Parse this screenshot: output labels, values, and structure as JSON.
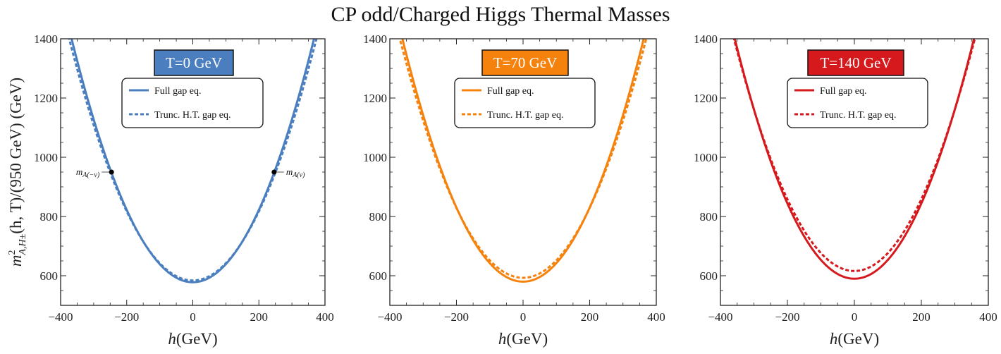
{
  "chart_data": {
    "title": "CP odd/Charged Higgs Thermal Masses",
    "ylabel": "m²_{A,H±}(h,T)/(950 GeV) (GeV)",
    "ylabel_parts": {
      "m": "m",
      "sup": "2",
      "sub": "A,H±",
      "rest": "(h, T)/(950 GeV)  (GeV)"
    },
    "panels": [
      {
        "type": "line",
        "badge": "T=0 GeV",
        "color": "#4a7ebf",
        "xlabel": "h(GeV)",
        "xlim": [
          -400,
          400
        ],
        "ylim": [
          500,
          1400
        ],
        "xticks": [
          -400,
          -200,
          0,
          200,
          400
        ],
        "yticks": [
          600,
          800,
          1000,
          1200,
          1400
        ],
        "series": [
          {
            "name": "Full gap eq.",
            "style": "solid",
            "min": 578,
            "a": 0.00611
          },
          {
            "name": "Trunc. H.T. gap eq.",
            "style": "dashed",
            "min": 584,
            "a": 0.00583
          }
        ],
        "annotations": [
          {
            "label": "m_{A(−v)}",
            "text_main": "m",
            "text_sub": "A(−v)",
            "x": -246,
            "y": 950,
            "side": "left"
          },
          {
            "label": "m_{A(v)}",
            "text_main": "m",
            "text_sub": "A(v)",
            "x": 246,
            "y": 950,
            "side": "right"
          }
        ]
      },
      {
        "type": "line",
        "badge": "T=70 GeV",
        "color": "#f5820d",
        "xlabel": "h(GeV)",
        "xlim": [
          -400,
          400
        ],
        "ylim": [
          500,
          1400
        ],
        "xticks": [
          -400,
          -200,
          0,
          200,
          400
        ],
        "yticks": [
          600,
          800,
          1000,
          1200,
          1400
        ],
        "series": [
          {
            "name": "Full gap eq.",
            "style": "solid",
            "min": 580,
            "a": 0.00625
          },
          {
            "name": "Trunc. H.T. gap eq.",
            "style": "dashed",
            "min": 593,
            "a": 0.0059
          }
        ],
        "annotations": []
      },
      {
        "type": "line",
        "badge": "T=140 GeV",
        "color": "#d6191c",
        "xlabel": "h(GeV)",
        "xlim": [
          -400,
          400
        ],
        "ylim": [
          500,
          1400
        ],
        "xticks": [
          -400,
          -200,
          0,
          200,
          400
        ],
        "yticks": [
          600,
          800,
          1000,
          1200,
          1400
        ],
        "series": [
          {
            "name": "Full gap eq.",
            "style": "solid",
            "min": 590,
            "a": 0.00635
          },
          {
            "name": "Trunc. H.T. gap eq.",
            "style": "dashed",
            "min": 616,
            "a": 0.00606
          }
        ],
        "annotations": []
      }
    ]
  }
}
